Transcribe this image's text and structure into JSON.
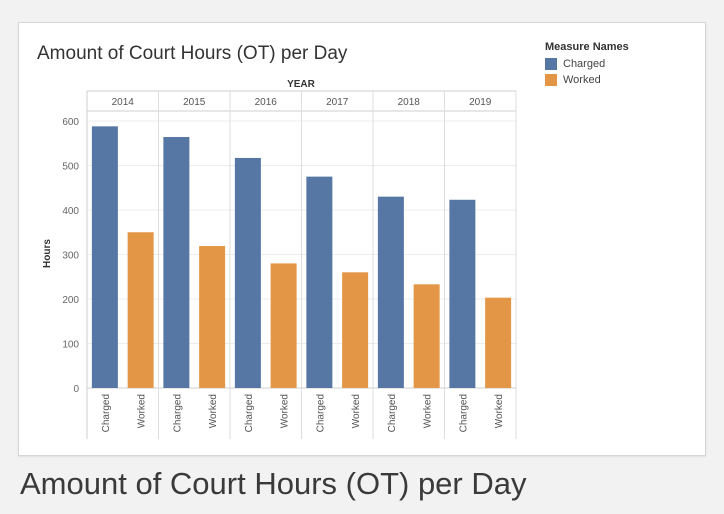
{
  "caption": "Amount of Court Hours (OT) per Day",
  "chart_data": {
    "type": "bar",
    "title": "Amount of Court Hours (OT) per Day",
    "column_header_title": "YEAR",
    "categories": [
      "2014",
      "2015",
      "2016",
      "2017",
      "2018",
      "2019"
    ],
    "sub_categories": [
      "Charged",
      "Worked"
    ],
    "series": [
      {
        "name": "Charged",
        "color": "#5677a4",
        "values": [
          588,
          564,
          517,
          475,
          430,
          423
        ]
      },
      {
        "name": "Worked",
        "color": "#e39645",
        "values": [
          350,
          319,
          280,
          260,
          233,
          203
        ]
      }
    ],
    "ylabel": "Hours",
    "ylim": [
      0,
      600
    ],
    "yticks": [
      0,
      100,
      200,
      300,
      400,
      500,
      600
    ],
    "grid": true,
    "legend": {
      "title": "Measure Names",
      "placement": "top-right"
    }
  }
}
